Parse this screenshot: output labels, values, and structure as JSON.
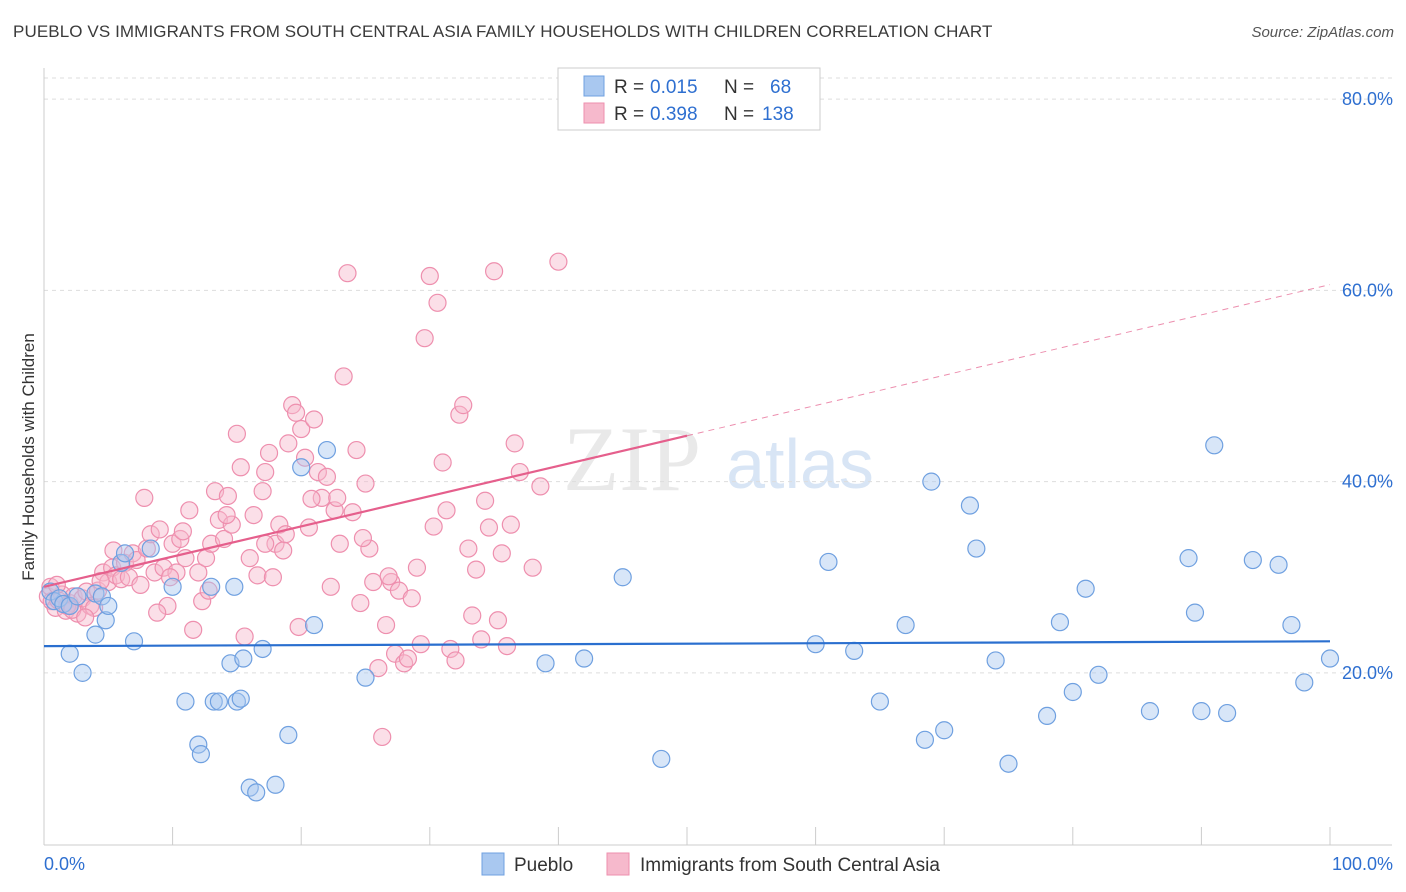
{
  "title": "PUEBLO VS IMMIGRANTS FROM SOUTH CENTRAL ASIA FAMILY HOUSEHOLDS WITH CHILDREN CORRELATION CHART",
  "source": "Source: ZipAtlas.com",
  "watermark": {
    "zip": "ZIP",
    "atlas": "atlas"
  },
  "colors": {
    "pueblo_fill": "#a9c8f0",
    "pueblo_stroke": "#6fa0e0",
    "pueblo_line": "#2a6fcf",
    "immig_fill": "#f6b9cc",
    "immig_stroke": "#ee8fae",
    "immig_line": "#e55f8c",
    "axis_label": "#2e6fd0",
    "grid": "#dddddd"
  },
  "legend": {
    "rows": [
      {
        "r_label": "R =",
        "r_value": "0.015",
        "n_label": "N =",
        "n_value": "68"
      },
      {
        "r_label": "R =",
        "r_value": "0.398",
        "n_label": "N =",
        "n_value": "138"
      }
    ]
  },
  "chart_data": {
    "type": "scatter",
    "ylabel": "Family Households with Children",
    "xlim": [
      0,
      100
    ],
    "ylim": [
      2,
      82
    ],
    "x_tick_labels": [
      "0.0%",
      "100.0%"
    ],
    "y_ticks": [
      20,
      40,
      60,
      80
    ],
    "y_tick_labels": [
      "20.0%",
      "40.0%",
      "60.0%",
      "80.0%"
    ],
    "grid": "horizontal dashed",
    "legend_position": "top-center",
    "series": [
      {
        "name": "Pueblo",
        "trend": {
          "x": [
            0,
            100
          ],
          "y": [
            22.8,
            23.3
          ],
          "style": "solid"
        },
        "points": [
          [
            0.5,
            28.5
          ],
          [
            0.8,
            27.5
          ],
          [
            1.2,
            27.8
          ],
          [
            1.5,
            27.2
          ],
          [
            2,
            27
          ],
          [
            2.6,
            28
          ],
          [
            4,
            28.3
          ],
          [
            2,
            22
          ],
          [
            3,
            20
          ],
          [
            4,
            24
          ],
          [
            4.5,
            28
          ],
          [
            4.8,
            25.5
          ],
          [
            5,
            27
          ],
          [
            6,
            31.5
          ],
          [
            6.3,
            32.5
          ],
          [
            7,
            23.3
          ],
          [
            8.3,
            33
          ],
          [
            10,
            29
          ],
          [
            11,
            17
          ],
          [
            12,
            12.5
          ],
          [
            12.2,
            11.5
          ],
          [
            13,
            29
          ],
          [
            13.2,
            17
          ],
          [
            13.6,
            17
          ],
          [
            14.5,
            21
          ],
          [
            14.8,
            29
          ],
          [
            15,
            17
          ],
          [
            15.5,
            21.5
          ],
          [
            15.3,
            17.3
          ],
          [
            16,
            8
          ],
          [
            16.5,
            7.5
          ],
          [
            17,
            22.5
          ],
          [
            18,
            8.3
          ],
          [
            19,
            13.5
          ],
          [
            20,
            41.5
          ],
          [
            21,
            25
          ],
          [
            22,
            43.3
          ],
          [
            25,
            19.5
          ],
          [
            39,
            21
          ],
          [
            42,
            21.5
          ],
          [
            45,
            30
          ],
          [
            48,
            11
          ],
          [
            60,
            23
          ],
          [
            61,
            31.6
          ],
          [
            63,
            22.3
          ],
          [
            65,
            17
          ],
          [
            67,
            25
          ],
          [
            68.5,
            13
          ],
          [
            69,
            40
          ],
          [
            70,
            14
          ],
          [
            72,
            37.5
          ],
          [
            72.5,
            33
          ],
          [
            74,
            21.3
          ],
          [
            75,
            10.5
          ],
          [
            78,
            15.5
          ],
          [
            79,
            25.3
          ],
          [
            80,
            18
          ],
          [
            81,
            28.8
          ],
          [
            82,
            19.8
          ],
          [
            86,
            16
          ],
          [
            89,
            32
          ],
          [
            89.5,
            26.3
          ],
          [
            90,
            16
          ],
          [
            91,
            43.8
          ],
          [
            92,
            15.8
          ],
          [
            94,
            31.8
          ],
          [
            96,
            31.3
          ],
          [
            97,
            25
          ],
          [
            98,
            19
          ],
          [
            100,
            21.5
          ]
        ]
      },
      {
        "name": "Immigrants from South Central Asia",
        "trend": {
          "x": [
            0,
            50
          ],
          "y": [
            29,
            44.8
          ],
          "style": "solid",
          "ext_x": [
            50,
            100
          ],
          "ext_y": [
            44.8,
            60.6
          ],
          "ext_style": "dashed"
        },
        "points": [
          [
            0.3,
            28
          ],
          [
            0.6,
            27.5
          ],
          [
            0.9,
            26.8
          ],
          [
            1.1,
            27.6
          ],
          [
            1.4,
            28.2
          ],
          [
            1.7,
            26.5
          ],
          [
            2,
            27.3
          ],
          [
            2.3,
            28
          ],
          [
            2.6,
            26.2
          ],
          [
            3,
            27.8
          ],
          [
            3.3,
            28.5
          ],
          [
            3.6,
            27
          ],
          [
            3.9,
            26.8
          ],
          [
            4.2,
            28.6
          ],
          [
            4.6,
            30.5
          ],
          [
            5,
            29.5
          ],
          [
            5.3,
            31
          ],
          [
            5.6,
            30.2
          ],
          [
            6,
            29.8
          ],
          [
            6.3,
            31.5
          ],
          [
            6.6,
            30
          ],
          [
            6.9,
            32.5
          ],
          [
            7.2,
            31.8
          ],
          [
            7.5,
            29.2
          ],
          [
            7.8,
            38.3
          ],
          [
            8,
            33
          ],
          [
            8.3,
            34.5
          ],
          [
            8.6,
            30.5
          ],
          [
            9,
            35
          ],
          [
            9.3,
            31
          ],
          [
            9.6,
            27
          ],
          [
            10,
            33.5
          ],
          [
            10.3,
            30.5
          ],
          [
            10.6,
            34
          ],
          [
            11,
            32
          ],
          [
            11.3,
            37
          ],
          [
            11.6,
            24.5
          ],
          [
            12,
            30.5
          ],
          [
            12.3,
            27.5
          ],
          [
            12.6,
            32
          ],
          [
            13,
            33.5
          ],
          [
            13.3,
            39
          ],
          [
            13.6,
            36
          ],
          [
            14,
            34
          ],
          [
            14.3,
            38.5
          ],
          [
            14.6,
            35.5
          ],
          [
            15,
            45
          ],
          [
            15.3,
            41.5
          ],
          [
            15.6,
            23.8
          ],
          [
            16,
            32
          ],
          [
            16.3,
            36.5
          ],
          [
            16.6,
            30.2
          ],
          [
            17,
            39
          ],
          [
            17.2,
            41
          ],
          [
            17.5,
            43
          ],
          [
            17.8,
            30
          ],
          [
            18,
            33.5
          ],
          [
            18.3,
            35.5
          ],
          [
            18.6,
            32.8
          ],
          [
            19,
            44
          ],
          [
            19.3,
            48
          ],
          [
            19.6,
            47.2
          ],
          [
            20,
            45.5
          ],
          [
            20.3,
            42.5
          ],
          [
            20.6,
            35.2
          ],
          [
            21,
            46.5
          ],
          [
            21.3,
            41
          ],
          [
            21.6,
            38.3
          ],
          [
            22,
            40.5
          ],
          [
            22.3,
            29
          ],
          [
            22.6,
            37
          ],
          [
            23,
            33.5
          ],
          [
            23.3,
            51
          ],
          [
            23.6,
            61.8
          ],
          [
            24,
            36.8
          ],
          [
            24.3,
            43.3
          ],
          [
            24.6,
            27.3
          ],
          [
            25,
            39.8
          ],
          [
            25.3,
            33
          ],
          [
            25.6,
            29.5
          ],
          [
            26,
            20.5
          ],
          [
            26.3,
            13.3
          ],
          [
            26.6,
            25
          ],
          [
            27,
            29.5
          ],
          [
            27.3,
            22
          ],
          [
            27.6,
            28.6
          ],
          [
            28,
            21
          ],
          [
            28.3,
            21.5
          ],
          [
            28.6,
            27.8
          ],
          [
            29,
            31
          ],
          [
            29.3,
            23
          ],
          [
            29.6,
            55
          ],
          [
            30,
            61.5
          ],
          [
            30.3,
            35.3
          ],
          [
            30.6,
            58.7
          ],
          [
            31,
            42
          ],
          [
            31.3,
            37
          ],
          [
            31.6,
            22.5
          ],
          [
            32,
            21.3
          ],
          [
            32.3,
            47
          ],
          [
            32.6,
            48
          ],
          [
            33,
            33
          ],
          [
            33.3,
            26
          ],
          [
            33.6,
            30.8
          ],
          [
            34,
            23.5
          ],
          [
            34.3,
            38
          ],
          [
            34.6,
            35.2
          ],
          [
            35,
            62
          ],
          [
            35.3,
            25.5
          ],
          [
            35.6,
            32.5
          ],
          [
            36,
            22.8
          ],
          [
            36.3,
            35.5
          ],
          [
            36.6,
            44
          ],
          [
            37,
            41
          ],
          [
            38,
            31
          ],
          [
            38.6,
            39.5
          ],
          [
            40,
            63
          ],
          [
            0.5,
            29
          ],
          [
            1,
            29.2
          ],
          [
            1.8,
            27
          ],
          [
            2.2,
            26.6
          ],
          [
            3.2,
            25.8
          ],
          [
            4.4,
            29.6
          ],
          [
            5.4,
            32.8
          ],
          [
            8.8,
            26.3
          ],
          [
            9.8,
            30
          ],
          [
            10.8,
            34.8
          ],
          [
            12.8,
            28.6
          ],
          [
            14.2,
            36.5
          ],
          [
            17.2,
            33.5
          ],
          [
            18.8,
            34.5
          ],
          [
            19.8,
            24.8
          ],
          [
            20.8,
            38.2
          ],
          [
            22.8,
            38.3
          ],
          [
            24.8,
            34.1
          ],
          [
            26.8,
            30.1
          ]
        ]
      }
    ],
    "legend_entries": [
      "Pueblo",
      "Immigrants from South Central Asia"
    ]
  }
}
